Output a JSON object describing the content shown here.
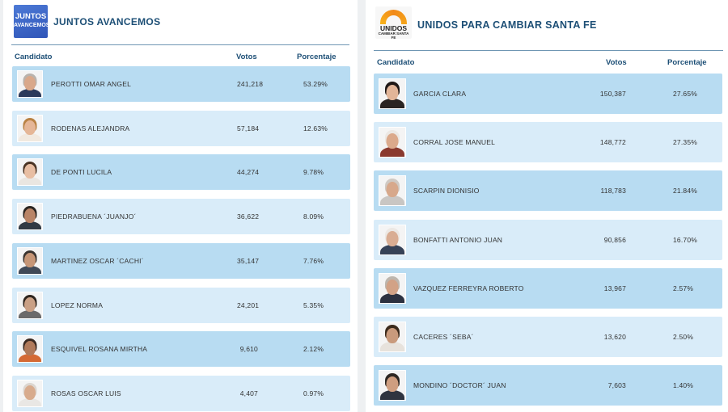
{
  "left": {
    "party": "JUNTOS AVANCEMOS",
    "logo_line1": "JUNTOS",
    "logo_line2": "AVANCEMOS",
    "columns": {
      "candidate": "Candidato",
      "votes": "Votos",
      "percent": "Porcentaje"
    },
    "rows": [
      {
        "name": "PEROTTI OMAR ANGEL",
        "votes": "241,218",
        "percent": "53.29%"
      },
      {
        "name": "RODENAS ALEJANDRA",
        "votes": "57,184",
        "percent": "12.63%"
      },
      {
        "name": "DE PONTI LUCILA",
        "votes": "44,274",
        "percent": "9.78%"
      },
      {
        "name": "PIEDRABUENA ´JUANJO´",
        "votes": "36,622",
        "percent": "8.09%"
      },
      {
        "name": "MARTINEZ OSCAR ´CACHI´",
        "votes": "35,147",
        "percent": "7.76%"
      },
      {
        "name": "LOPEZ NORMA",
        "votes": "24,201",
        "percent": "5.35%"
      },
      {
        "name": "ESQUIVEL ROSANA MIRTHA",
        "votes": "9,610",
        "percent": "2.12%"
      },
      {
        "name": "ROSAS OSCAR LUIS",
        "votes": "4,407",
        "percent": "0.97%"
      }
    ]
  },
  "right": {
    "party": "UNIDOS PARA CAMBIAR SANTA FE",
    "logo_line1": "UNIDOS",
    "logo_line2": "CAMBIAR SANTA FE",
    "columns": {
      "candidate": "Candidato",
      "votes": "Votos",
      "percent": "Porcentaje"
    },
    "rows": [
      {
        "name": "GARCIA CLARA",
        "votes": "150,387",
        "percent": "27.65%"
      },
      {
        "name": "CORRAL JOSE MANUEL",
        "votes": "148,772",
        "percent": "27.35%"
      },
      {
        "name": "SCARPIN DIONISIO",
        "votes": "118,783",
        "percent": "21.84%"
      },
      {
        "name": "BONFATTI ANTONIO JUAN",
        "votes": "90,856",
        "percent": "16.70%"
      },
      {
        "name": "VAZQUEZ FERREYRA ROBERTO",
        "votes": "13,967",
        "percent": "2.57%"
      },
      {
        "name": "CACERES ´SEBA´",
        "votes": "13,620",
        "percent": "2.50%"
      },
      {
        "name": "MONDINO ´DOCTOR´ JUAN",
        "votes": "7,603",
        "percent": "1.40%"
      }
    ]
  },
  "colors": {
    "accent": "#1d4f76",
    "row_dark": "#b8dcf2",
    "row_light": "#d9ecf9",
    "rule": "#6f96b3"
  }
}
